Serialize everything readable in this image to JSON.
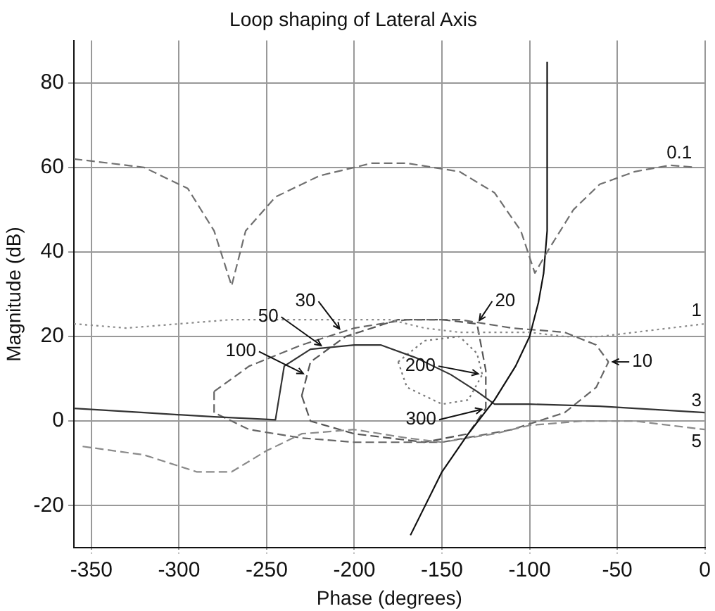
{
  "chart_data": {
    "type": "line",
    "title": "Loop shaping of Lateral Axis",
    "xlabel": "Phase (degrees)",
    "ylabel": "Magnitude (dB)",
    "xlim": [
      -360,
      0
    ],
    "xticks": [
      -350,
      -300,
      -250,
      -200,
      -150,
      -100,
      -50,
      0
    ],
    "ylim": [
      -30,
      90
    ],
    "yticks": [
      -20,
      0,
      20,
      40,
      60,
      80
    ],
    "grid": true,
    "legend": false,
    "marker": "none",
    "series": [
      {
        "color": "#707070",
        "line_style": "dashed",
        "x": [
          -360,
          -320,
          -295,
          -280,
          -270,
          -262,
          -245,
          -220,
          -190,
          -170,
          -140,
          -120,
          -105,
          -97,
          -90,
          -75,
          -60,
          -40,
          -20,
          -5
        ],
        "values": [
          62,
          60,
          55,
          45,
          32,
          45,
          53,
          58,
          61,
          61,
          59,
          54,
          45,
          35,
          40,
          50,
          56,
          59,
          60.5,
          60
        ]
      },
      {
        "color": "#111111",
        "line_style": "solid",
        "x": [
          -168,
          -150,
          -135,
          -120,
          -108,
          -100,
          -95,
          -92,
          -90,
          -90
        ],
        "values": [
          -27,
          -12,
          -3,
          5,
          13,
          20,
          28,
          35,
          45,
          85
        ]
      },
      {
        "color": "#8a8a8a",
        "line_style": "dotted",
        "x": [
          -360,
          -330,
          -300,
          -270,
          -240,
          -200,
          -180,
          -160,
          -140,
          -120,
          -100,
          -80,
          -60,
          -40,
          -20,
          0
        ],
        "values": [
          23,
          22,
          23,
          24,
          24,
          24,
          24,
          22,
          21,
          21,
          21,
          20,
          20,
          21,
          22,
          23
        ]
      },
      {
        "color": "#333333",
        "line_style": "solid",
        "x": [
          -360,
          -320,
          -280,
          -245,
          -240,
          -225,
          -200,
          -185,
          -165,
          -145,
          -130,
          -120,
          -100,
          -60,
          -20,
          0
        ],
        "values": [
          3,
          2,
          1,
          0.3,
          13,
          17,
          18,
          18,
          15,
          11,
          7,
          4,
          4,
          3.5,
          2.5,
          2
        ]
      },
      {
        "color": "#8a8a8a",
        "line_style": "dashed",
        "x": [
          -355,
          -320,
          -290,
          -270,
          -250,
          -230,
          -200,
          -170,
          -150,
          -120,
          -100,
          -70,
          -40,
          0
        ],
        "values": [
          -6,
          -8,
          -12,
          -12,
          -7,
          -3,
          -2,
          -4,
          -5,
          -3,
          -1,
          0,
          0,
          -2
        ]
      },
      {
        "color": "#666666",
        "line_style": "dashed",
        "x": [
          -280,
          -260,
          -230,
          -200,
          -170,
          -140,
          -110,
          -80,
          -62,
          -55
        ],
        "values": [
          7,
          13,
          18,
          22,
          24,
          24,
          22,
          21,
          18,
          14
        ]
      },
      {
        "color": "#666666",
        "line_style": "dashed",
        "x": [
          -280,
          -280,
          -260,
          -230,
          -200,
          -150,
          -110,
          -80,
          -62,
          -55
        ],
        "values": [
          7,
          2,
          -2,
          -4,
          -5,
          -5,
          -2,
          2,
          8,
          14
        ]
      },
      {
        "color": "#555555",
        "line_style": "dashed",
        "x": [
          -230,
          -225,
          -205,
          -175,
          -150,
          -130,
          -125,
          -125
        ],
        "values": [
          6,
          14,
          20,
          24,
          24,
          23,
          12,
          3
        ]
      },
      {
        "color": "#555555",
        "line_style": "dashed",
        "x": [
          -230,
          -225,
          -200,
          -160,
          -135,
          -125
        ],
        "values": [
          6,
          0,
          -3,
          -5,
          -3,
          3
        ]
      },
      {
        "color": "#777777",
        "line_style": "dotted",
        "x": [
          -175,
          -160,
          -140,
          -130,
          -127
        ],
        "values": [
          14,
          19,
          20,
          16,
          11
        ]
      },
      {
        "color": "#777777",
        "line_style": "dotted",
        "x": [
          -175,
          -170,
          -150,
          -135,
          -127
        ],
        "values": [
          14,
          8,
          4,
          5,
          11
        ]
      }
    ],
    "annotations": [
      {
        "text": "0.1",
        "x": -5,
        "y": 60
      },
      {
        "text": "1",
        "x": 0,
        "y": 23
      },
      {
        "text": "3",
        "x": 0,
        "y": 2
      },
      {
        "text": "5",
        "x": 0,
        "y": -2
      },
      {
        "text": "10",
        "x": -55,
        "y": 14
      },
      {
        "text": "20",
        "x": -130,
        "y": 23
      },
      {
        "text": "30",
        "x": -207,
        "y": 21
      },
      {
        "text": "50",
        "x": -217,
        "y": 17.3
      },
      {
        "text": "100",
        "x": -227,
        "y": 10.8
      },
      {
        "text": "200",
        "x": -127,
        "y": 11
      },
      {
        "text": "300",
        "x": -125,
        "y": 3
      }
    ]
  }
}
